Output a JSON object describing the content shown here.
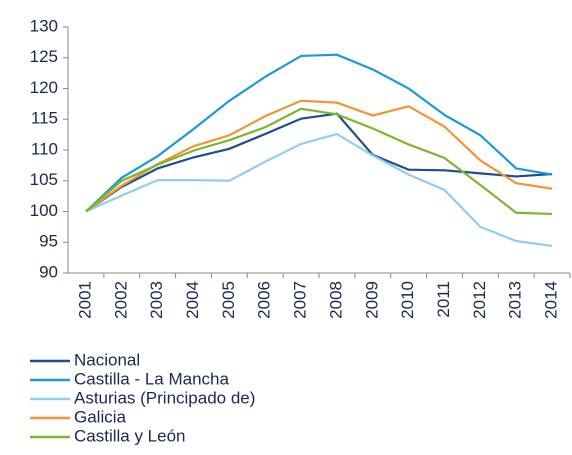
{
  "chart_data": {
    "type": "line",
    "categories": [
      "2001",
      "2002",
      "2003",
      "2004",
      "2005",
      "2006",
      "2007",
      "2008",
      "2009",
      "2010",
      "2011",
      "2012",
      "2013",
      "2014"
    ],
    "series": [
      {
        "name": "Nacional",
        "color": "#1f4e8c",
        "values": [
          100,
          104,
          107,
          108.8,
          110.2,
          112.6,
          115.1,
          115.9,
          109.2,
          106.8,
          106.7,
          106.2,
          105.7,
          106.1
        ]
      },
      {
        "name": "Castilla - La Mancha",
        "color": "#1a9ad6",
        "values": [
          100,
          105.5,
          109,
          113.4,
          118,
          121.9,
          125.3,
          125.5,
          123.1,
          120,
          115.7,
          112.4,
          107,
          106
        ]
      },
      {
        "name": "Asturias (Principado de)",
        "color": "#92cdee",
        "values": [
          100,
          102.6,
          105.1,
          105.1,
          105,
          108.1,
          111,
          112.6,
          109.1,
          106,
          103.5,
          97.5,
          95.2,
          94.4
        ]
      },
      {
        "name": "Galicia",
        "color": "#f39433",
        "values": [
          100,
          104.2,
          107.7,
          110.6,
          112.4,
          115.5,
          118,
          117.7,
          115.6,
          117.1,
          113.8,
          108.3,
          104.6,
          103.7
        ]
      },
      {
        "name": "Castilla y León",
        "color": "#7ab829",
        "values": [
          100,
          105,
          107.6,
          109.9,
          111.6,
          113.7,
          116.7,
          115.8,
          113.5,
          110.9,
          108.7,
          104.3,
          99.8,
          99.6
        ]
      }
    ],
    "ylim": [
      90,
      130
    ],
    "yticks": [
      90,
      95,
      100,
      105,
      110,
      115,
      120,
      125,
      130
    ],
    "grid": false,
    "legend": "bottom"
  }
}
